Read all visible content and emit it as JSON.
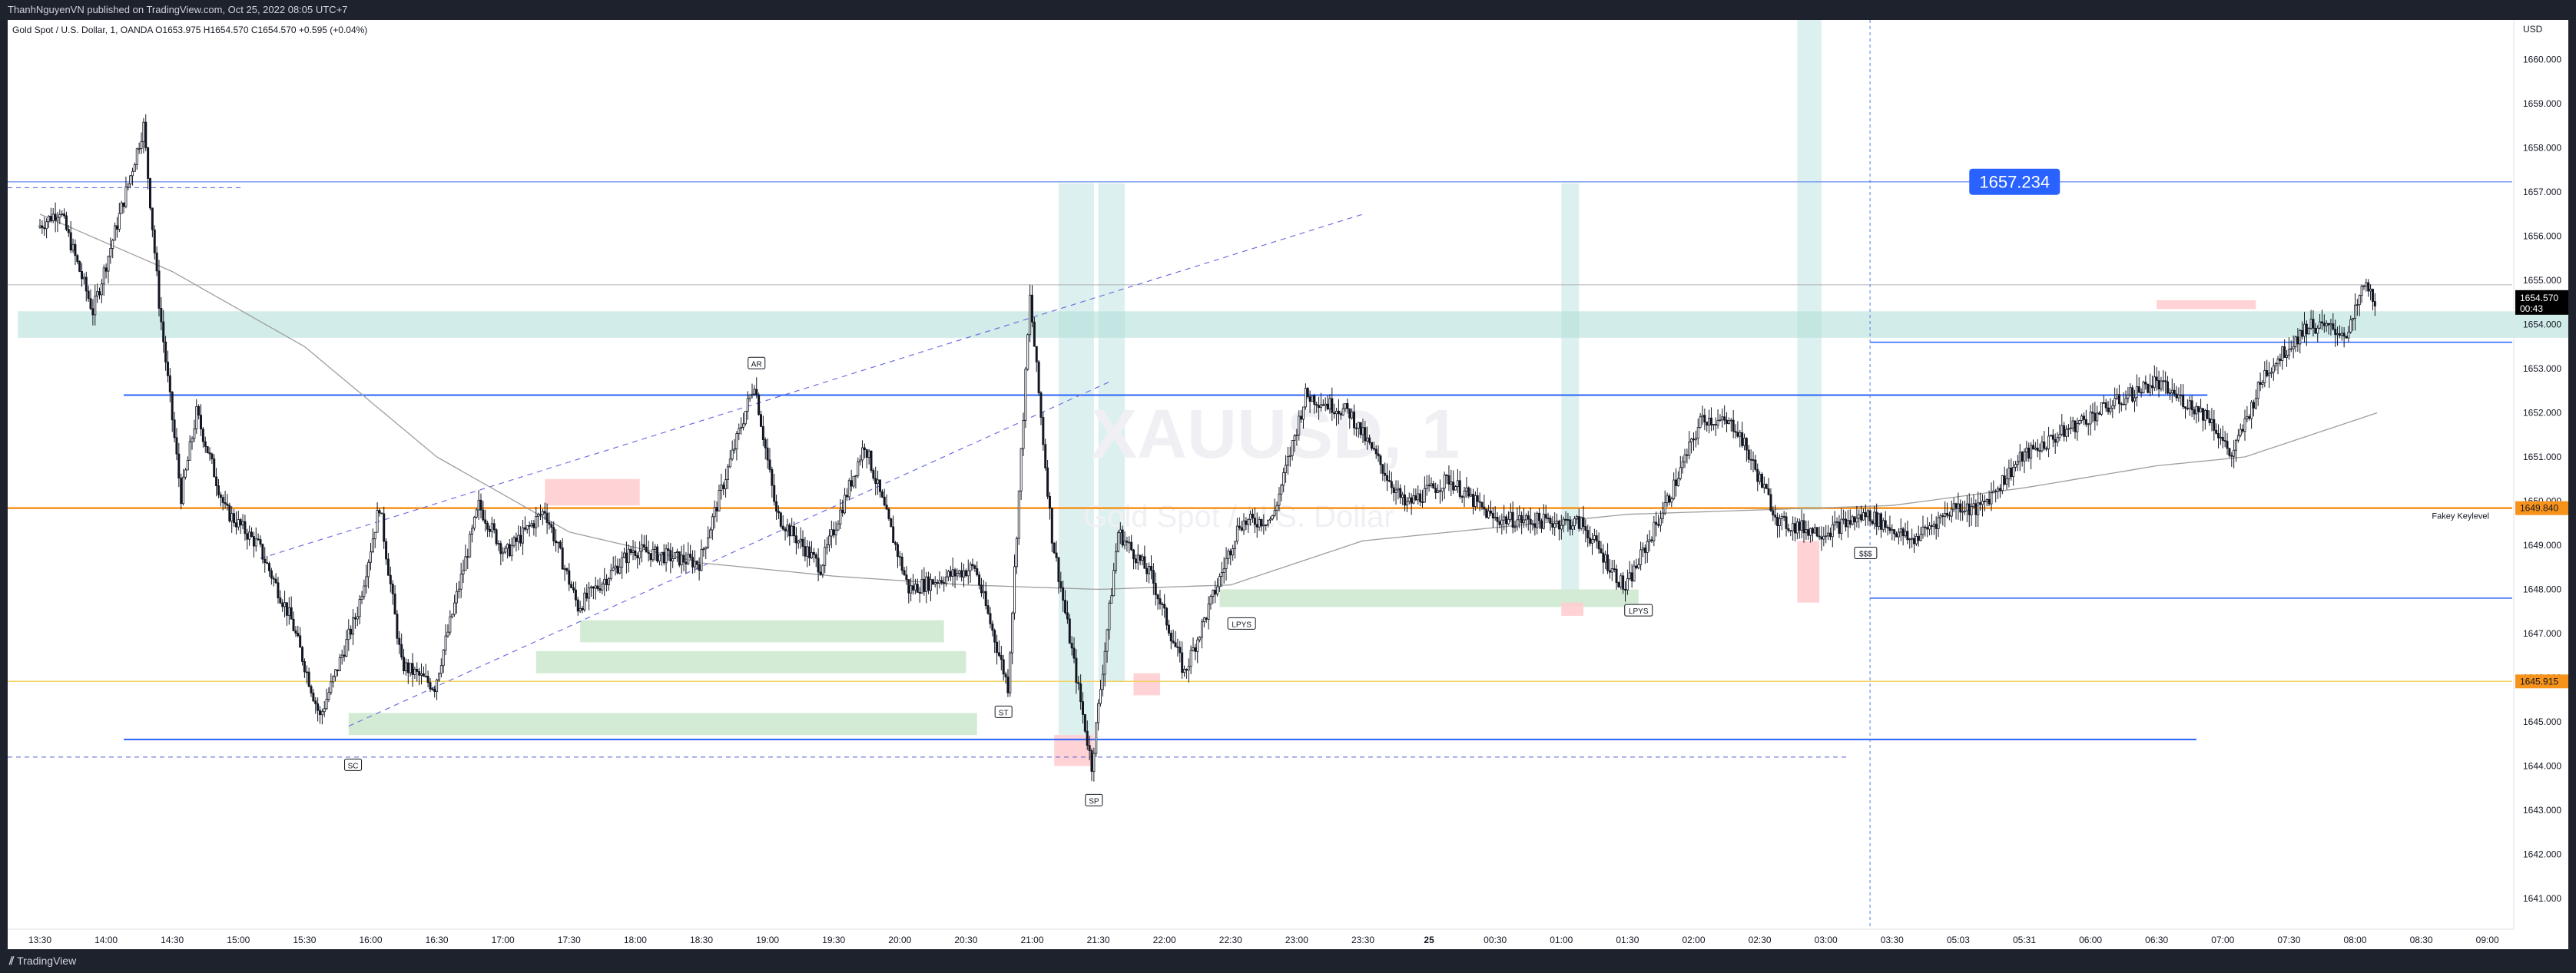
{
  "header": {
    "publish_line": "ThanhNguyenVN published on TradingView.com, Oct 25, 2022 08:05 UTC+7"
  },
  "symbol_line": "Gold Spot / U.S. Dollar, 1, OANDA  O1653.975  H1654.570  C1654.570  +0.595 (+0.04%)",
  "watermark": {
    "symbol": "XAUUSD, 1",
    "description": "Gold Spot / U.S. Dollar"
  },
  "footer": {
    "brand": "TradingView"
  },
  "colors": {
    "candle": "#131722",
    "orange_level": "#f7931a",
    "blue_level": "#2962ff",
    "zone_teal": "#b2dfdb",
    "zone_green": "#c8e6c9",
    "zone_red": "#ffcdd2",
    "label_blue": "#2962ff",
    "price_tag": "#000000"
  },
  "chart_data": {
    "type": "candlestick",
    "currency": "USD",
    "y_ticks": [
      "1641.000",
      "1642.000",
      "1643.000",
      "1644.000",
      "1645.000",
      "1646.000",
      "1647.000",
      "1648.000",
      "1649.000",
      "1650.000",
      "1651.000",
      "1652.000",
      "1653.000",
      "1654.000",
      "1655.000",
      "1656.000",
      "1657.000",
      "1658.000",
      "1659.000",
      "1660.000"
    ],
    "ylim": [
      1640.3,
      1660.9
    ],
    "x_ticks": [
      {
        "label": "13:30",
        "i": 0
      },
      {
        "label": "14:00",
        "i": 30
      },
      {
        "label": "14:30",
        "i": 60
      },
      {
        "label": "15:00",
        "i": 90
      },
      {
        "label": "15:30",
        "i": 120
      },
      {
        "label": "16:00",
        "i": 150
      },
      {
        "label": "16:30",
        "i": 180
      },
      {
        "label": "17:00",
        "i": 210
      },
      {
        "label": "17:30",
        "i": 240
      },
      {
        "label": "18:00",
        "i": 270
      },
      {
        "label": "18:30",
        "i": 300
      },
      {
        "label": "19:00",
        "i": 330
      },
      {
        "label": "19:30",
        "i": 360
      },
      {
        "label": "20:00",
        "i": 390
      },
      {
        "label": "20:30",
        "i": 420
      },
      {
        "label": "21:00",
        "i": 450
      },
      {
        "label": "21:30",
        "i": 480
      },
      {
        "label": "22:00",
        "i": 510
      },
      {
        "label": "22:30",
        "i": 540
      },
      {
        "label": "23:00",
        "i": 570
      },
      {
        "label": "23:30",
        "i": 600
      },
      {
        "label": "25",
        "i": 630
      },
      {
        "label": "00:30",
        "i": 660
      },
      {
        "label": "01:00",
        "i": 690
      },
      {
        "label": "01:30",
        "i": 720
      },
      {
        "label": "02:00",
        "i": 750
      },
      {
        "label": "02:30",
        "i": 780
      },
      {
        "label": "03:00",
        "i": 810
      },
      {
        "label": "03:30",
        "i": 840
      },
      {
        "label": "05:03",
        "i": 870
      },
      {
        "label": "05:31",
        "i": 900
      },
      {
        "label": "06:00",
        "i": 930
      },
      {
        "label": "06:30",
        "i": 960
      },
      {
        "label": "07:00",
        "i": 990
      },
      {
        "label": "07:30",
        "i": 1020
      },
      {
        "label": "08:00",
        "i": 1050
      },
      {
        "label": "08:30",
        "i": 1080
      },
      {
        "label": "09:00",
        "i": 1110
      }
    ],
    "bars_total": 1060,
    "anchors": [
      [
        0,
        1656.2
      ],
      [
        10,
        1656.6
      ],
      [
        25,
        1654.3
      ],
      [
        40,
        1657.0
      ],
      [
        48,
        1658.5
      ],
      [
        55,
        1654.5
      ],
      [
        65,
        1650.1
      ],
      [
        72,
        1652.0
      ],
      [
        85,
        1649.8
      ],
      [
        100,
        1649.0
      ],
      [
        115,
        1647.3
      ],
      [
        128,
        1645.1
      ],
      [
        145,
        1647.5
      ],
      [
        155,
        1649.9
      ],
      [
        165,
        1646.3
      ],
      [
        180,
        1645.8
      ],
      [
        200,
        1649.9
      ],
      [
        212,
        1648.8
      ],
      [
        230,
        1649.8
      ],
      [
        245,
        1647.6
      ],
      [
        270,
        1648.9
      ],
      [
        300,
        1648.6
      ],
      [
        325,
        1652.7
      ],
      [
        335,
        1649.7
      ],
      [
        355,
        1648.5
      ],
      [
        375,
        1651.3
      ],
      [
        395,
        1648.0
      ],
      [
        425,
        1648.5
      ],
      [
        440,
        1645.8
      ],
      [
        450,
        1654.6
      ],
      [
        460,
        1649.2
      ],
      [
        478,
        1644.0
      ],
      [
        490,
        1649.3
      ],
      [
        505,
        1648.3
      ],
      [
        520,
        1646.1
      ],
      [
        535,
        1648.1
      ],
      [
        545,
        1649.5
      ],
      [
        560,
        1649.6
      ],
      [
        575,
        1652.4
      ],
      [
        595,
        1652.0
      ],
      [
        620,
        1649.9
      ],
      [
        640,
        1650.5
      ],
      [
        660,
        1649.6
      ],
      [
        700,
        1649.5
      ],
      [
        720,
        1648.0
      ],
      [
        740,
        1650.1
      ],
      [
        755,
        1651.9
      ],
      [
        770,
        1651.7
      ],
      [
        790,
        1649.5
      ],
      [
        810,
        1649.3
      ],
      [
        830,
        1649.7
      ],
      [
        850,
        1649.1
      ],
      [
        870,
        1649.9
      ],
      [
        880,
        1649.8
      ],
      [
        900,
        1651.0
      ],
      [
        930,
        1651.9
      ],
      [
        960,
        1652.7
      ],
      [
        985,
        1651.9
      ],
      [
        995,
        1651.0
      ],
      [
        1010,
        1652.9
      ],
      [
        1030,
        1654.0
      ],
      [
        1048,
        1653.8
      ],
      [
        1055,
        1654.9
      ],
      [
        1060,
        1654.57
      ]
    ],
    "ma_points": [
      [
        0,
        1656.5
      ],
      [
        60,
        1655.2
      ],
      [
        120,
        1653.5
      ],
      [
        180,
        1651.0
      ],
      [
        240,
        1649.3
      ],
      [
        300,
        1648.6
      ],
      [
        360,
        1648.3
      ],
      [
        420,
        1648.1
      ],
      [
        480,
        1648.0
      ],
      [
        540,
        1648.1
      ],
      [
        600,
        1649.1
      ],
      [
        660,
        1649.4
      ],
      [
        720,
        1649.7
      ],
      [
        780,
        1649.8
      ],
      [
        840,
        1649.9
      ],
      [
        900,
        1650.3
      ],
      [
        960,
        1650.8
      ],
      [
        1000,
        1651.0
      ],
      [
        1060,
        1652.0
      ]
    ],
    "levels": [
      {
        "value": 1657.234,
        "label": "1657.234",
        "style": "blue"
      },
      {
        "value": 1649.84,
        "label": "1649.840",
        "style": "orange",
        "note": "Fakey Keylevel"
      },
      {
        "value": 1645.915,
        "label": "1645.915",
        "style": "yellow"
      }
    ],
    "current_price": {
      "value": "1654.570",
      "countdown": "00:43"
    },
    "annotations": [
      {
        "text": "AR",
        "i": 325,
        "price": 1653.1
      },
      {
        "text": "ST",
        "i": 437,
        "price": 1645.2
      },
      {
        "text": "SC",
        "i": 142,
        "price": 1644.0
      },
      {
        "text": "SP",
        "i": 478,
        "price": 1643.2
      },
      {
        "text": "LPYS",
        "i": 545,
        "price": 1647.2
      },
      {
        "text": "LPYS",
        "i": 725,
        "price": 1647.5
      },
      {
        "text": "$$$",
        "i": 828,
        "price": 1648.8
      }
    ]
  }
}
